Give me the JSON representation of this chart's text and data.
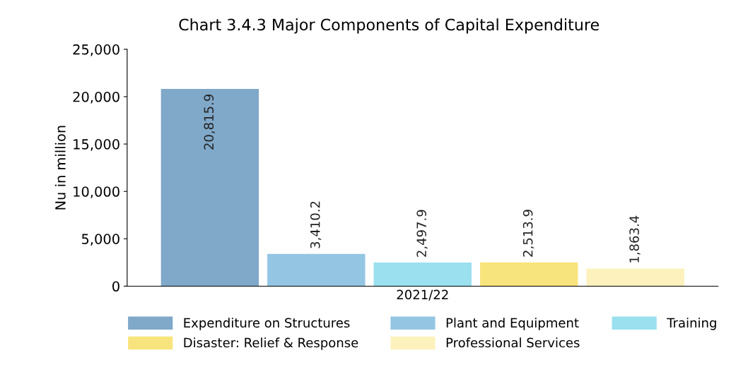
{
  "chart_data": {
    "type": "bar",
    "title": "Chart 3.4.3 Major Components of Capital Expenditure",
    "ylabel": "Nu in million",
    "categories": [
      "2021/22"
    ],
    "series": [
      {
        "name": "Expenditure on Structures",
        "color": "#80a8c9",
        "values": [
          20815.9
        ],
        "value_labels": [
          "20,815.9"
        ]
      },
      {
        "name": "Plant and Equipment",
        "color": "#94c6e3",
        "values": [
          3410.2
        ],
        "value_labels": [
          "3,410.2"
        ]
      },
      {
        "name": "Training",
        "color": "#9ae0ef",
        "values": [
          2497.9
        ],
        "value_labels": [
          "2,497.9"
        ]
      },
      {
        "name": "Disaster: Relief & Response",
        "color": "#f8e47c",
        "values": [
          2513.9
        ],
        "value_labels": [
          "2,513.9"
        ]
      },
      {
        "name": "Professional Services",
        "color": "#fdf1bd",
        "values": [
          1863.4
        ],
        "value_labels": [
          "1,863.4"
        ]
      }
    ],
    "ylim": [
      0,
      25000
    ],
    "yticks": [
      {
        "value": 0,
        "label": "0"
      },
      {
        "value": 5000,
        "label": "5,000"
      },
      {
        "value": 10000,
        "label": "10,000"
      },
      {
        "value": 15000,
        "label": "15,000"
      },
      {
        "value": 20000,
        "label": "20,000"
      },
      {
        "value": 25000,
        "label": "25,000"
      }
    ],
    "grid": false,
    "legend": "bottom"
  }
}
